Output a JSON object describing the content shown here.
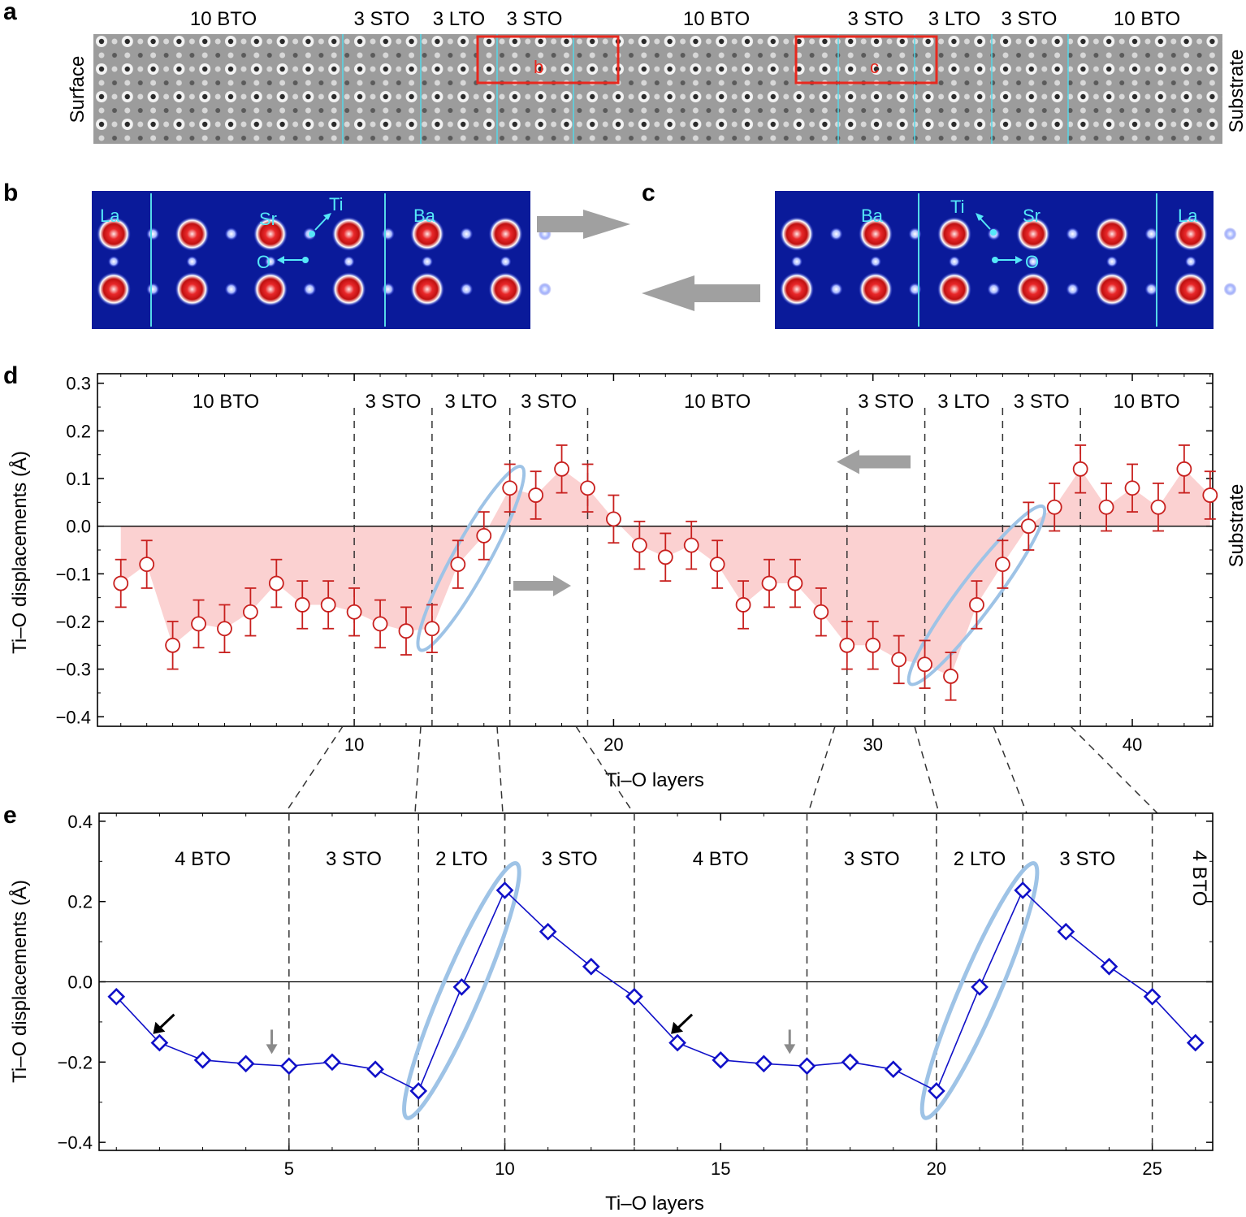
{
  "panel_letters": {
    "a": "a",
    "b": "b",
    "c": "c",
    "d": "d",
    "e": "e"
  },
  "panel_a": {
    "top_labels": [
      "10 BTO",
      "3 STO",
      "3 LTO",
      "3 STO",
      "10 BTO",
      "3 STO",
      "3 LTO",
      "3 STO",
      "10 BTO"
    ],
    "left_label": "Surface",
    "right_label": "Substrate",
    "box_labels": [
      "b",
      "c"
    ],
    "colors": {
      "interface": "#55d8e8",
      "box": "#e8281e"
    }
  },
  "panel_b": {
    "atom_labels": [
      "La",
      "Sr",
      "Ti",
      "Ba",
      "O"
    ]
  },
  "panel_c": {
    "atom_labels": [
      "Ba",
      "Ti",
      "Sr",
      "La",
      "O"
    ]
  },
  "chart_data": [
    {
      "id": "d",
      "type": "scatter",
      "xlabel": "Ti–O layers",
      "ylabel": "Ti–O displacements (Å)",
      "right_label": "Substrate",
      "xlim": [
        0.1,
        43.1
      ],
      "ylim": [
        -0.42,
        0.32
      ],
      "xticks": [
        10,
        20,
        30,
        40
      ],
      "yticks": [
        0.3,
        0.2,
        0.1,
        0.0,
        -0.1,
        -0.2,
        -0.3,
        -0.4
      ],
      "ytick_labels": [
        "0.3",
        "0.2",
        "0.1",
        "0.0",
        "−0.1",
        "−0.2",
        "−0.3",
        "−0.4"
      ],
      "x": [
        1,
        2,
        3,
        4,
        5,
        6,
        7,
        8,
        9,
        10,
        11,
        12,
        13,
        14,
        15,
        16,
        17,
        18,
        19,
        20,
        21,
        22,
        23,
        24,
        25,
        26,
        27,
        28,
        29,
        30,
        31,
        32,
        33,
        34,
        35,
        36,
        37,
        38,
        39,
        40,
        41,
        42,
        43
      ],
      "y": [
        -0.12,
        -0.08,
        -0.25,
        -0.205,
        -0.215,
        -0.18,
        -0.12,
        -0.165,
        -0.165,
        -0.18,
        -0.205,
        -0.22,
        -0.215,
        -0.08,
        -0.02,
        0.08,
        0.065,
        0.12,
        0.08,
        0.015,
        -0.04,
        -0.065,
        -0.04,
        -0.08,
        -0.165,
        -0.12,
        -0.12,
        -0.18,
        -0.25,
        -0.25,
        -0.28,
        -0.29,
        -0.315,
        -0.165,
        -0.08,
        0.0,
        0.04,
        0.12,
        0.04,
        0.08,
        0.04,
        0.12,
        0.065
      ],
      "yerr": 0.05,
      "region_boundaries": [
        10,
        13,
        16,
        19,
        29,
        32,
        35,
        38
      ],
      "region_labels": [
        "10 BTO",
        "3 STO",
        "3 LTO",
        "3 STO",
        "10 BTO",
        "3 STO",
        "3 LTO",
        "3 STO",
        "10 BTO"
      ],
      "highlight_x_ranges": [
        [
          13,
          16
        ],
        [
          32,
          36
        ]
      ],
      "colors": {
        "marker": "#c8201e",
        "fill": "#fbd1d1",
        "ellipse": "#9ec3e6",
        "arrow": "#a0a0a0"
      }
    },
    {
      "id": "e",
      "type": "line",
      "xlabel": "Ti–O layers",
      "ylabel": "Ti–O displacements (Å)",
      "xlim": [
        0.6,
        26.4
      ],
      "ylim": [
        -0.42,
        0.42
      ],
      "xticks": [
        5,
        10,
        15,
        20,
        25
      ],
      "yticks": [
        0.4,
        0.2,
        0.0,
        -0.2,
        -0.4
      ],
      "ytick_labels": [
        "0.4",
        "0.2",
        "0.0",
        "−0.2",
        "−0.4"
      ],
      "x": [
        1,
        2,
        3,
        4,
        5,
        6,
        7,
        8,
        9,
        10,
        11,
        12,
        13,
        14,
        15,
        16,
        17,
        18,
        19,
        20,
        21,
        22,
        23,
        24,
        25,
        26
      ],
      "y": [
        -0.037,
        -0.152,
        -0.195,
        -0.204,
        -0.21,
        -0.2,
        -0.218,
        -0.272,
        -0.013,
        0.228,
        0.125,
        0.038,
        -0.037,
        -0.152,
        -0.195,
        -0.204,
        -0.21,
        -0.2,
        -0.218,
        -0.272,
        -0.013,
        0.228,
        0.125,
        0.038,
        -0.037,
        -0.152
      ],
      "region_boundaries": [
        5,
        8,
        10,
        13,
        17,
        20,
        22,
        25
      ],
      "region_labels": [
        "4 BTO",
        "3 STO",
        "2 LTO",
        "3 STO",
        "4 BTO",
        "3 STO",
        "2 LTO",
        "3 STO",
        "4 BTO"
      ],
      "black_arrow_x": [
        2,
        14
      ],
      "gray_arrow_x": [
        4.6,
        16.6
      ],
      "highlight_x_ranges": [
        [
          8,
          10
        ],
        [
          20,
          22
        ]
      ],
      "colors": {
        "marker": "#1010c8",
        "ellipse": "#9ec3e6"
      }
    }
  ]
}
